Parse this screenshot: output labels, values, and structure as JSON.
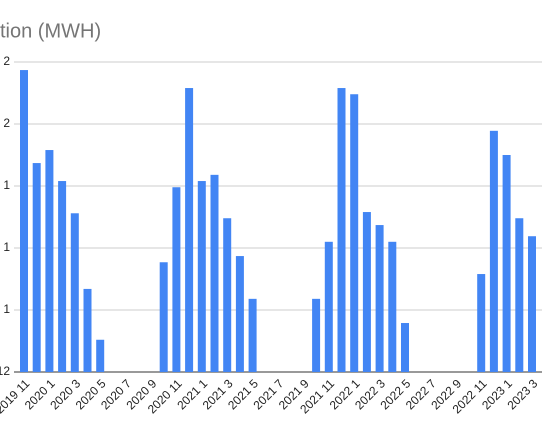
{
  "chart_data": {
    "type": "bar",
    "title": "tion (MWH)",
    "categories": [
      "2019 11",
      null,
      "2020 1",
      null,
      "2020 3",
      null,
      "2020 5",
      null,
      "2020 7",
      null,
      "2020 9",
      null,
      "2020 11",
      null,
      "2021 1",
      null,
      "2021 3",
      null,
      "2021 5",
      null,
      "2021 7",
      null,
      "2021 9",
      null,
      "2021 11",
      null,
      "2022 1",
      null,
      "2022 3",
      null,
      "2022 5",
      null,
      "2022 7",
      null,
      "2022 9",
      null,
      "2022 11",
      null,
      "2023 1",
      null,
      "2023 3"
    ],
    "values": [
      4.87,
      3.37,
      3.58,
      3.08,
      2.56,
      1.34,
      0.52,
      0,
      0,
      0,
      0,
      1.77,
      2.98,
      4.58,
      3.08,
      3.18,
      2.48,
      1.87,
      1.18,
      0,
      0,
      0,
      0,
      1.18,
      2.1,
      4.58,
      4.48,
      2.58,
      2.37,
      2.1,
      0.79,
      0,
      0,
      0,
      0,
      0,
      1.58,
      3.89,
      3.5,
      2.48,
      2.19
    ],
    "color": "#4285f4",
    "ylim": [
      0,
      5
    ],
    "yticks": [
      {
        "value": 0,
        "label": "12"
      },
      {
        "value": 1,
        "label": "1"
      },
      {
        "value": 2,
        "label": "1"
      },
      {
        "value": 3,
        "label": "1"
      },
      {
        "value": 4,
        "label": "2"
      },
      {
        "value": 5,
        "label": "2"
      }
    ],
    "grid": true
  }
}
